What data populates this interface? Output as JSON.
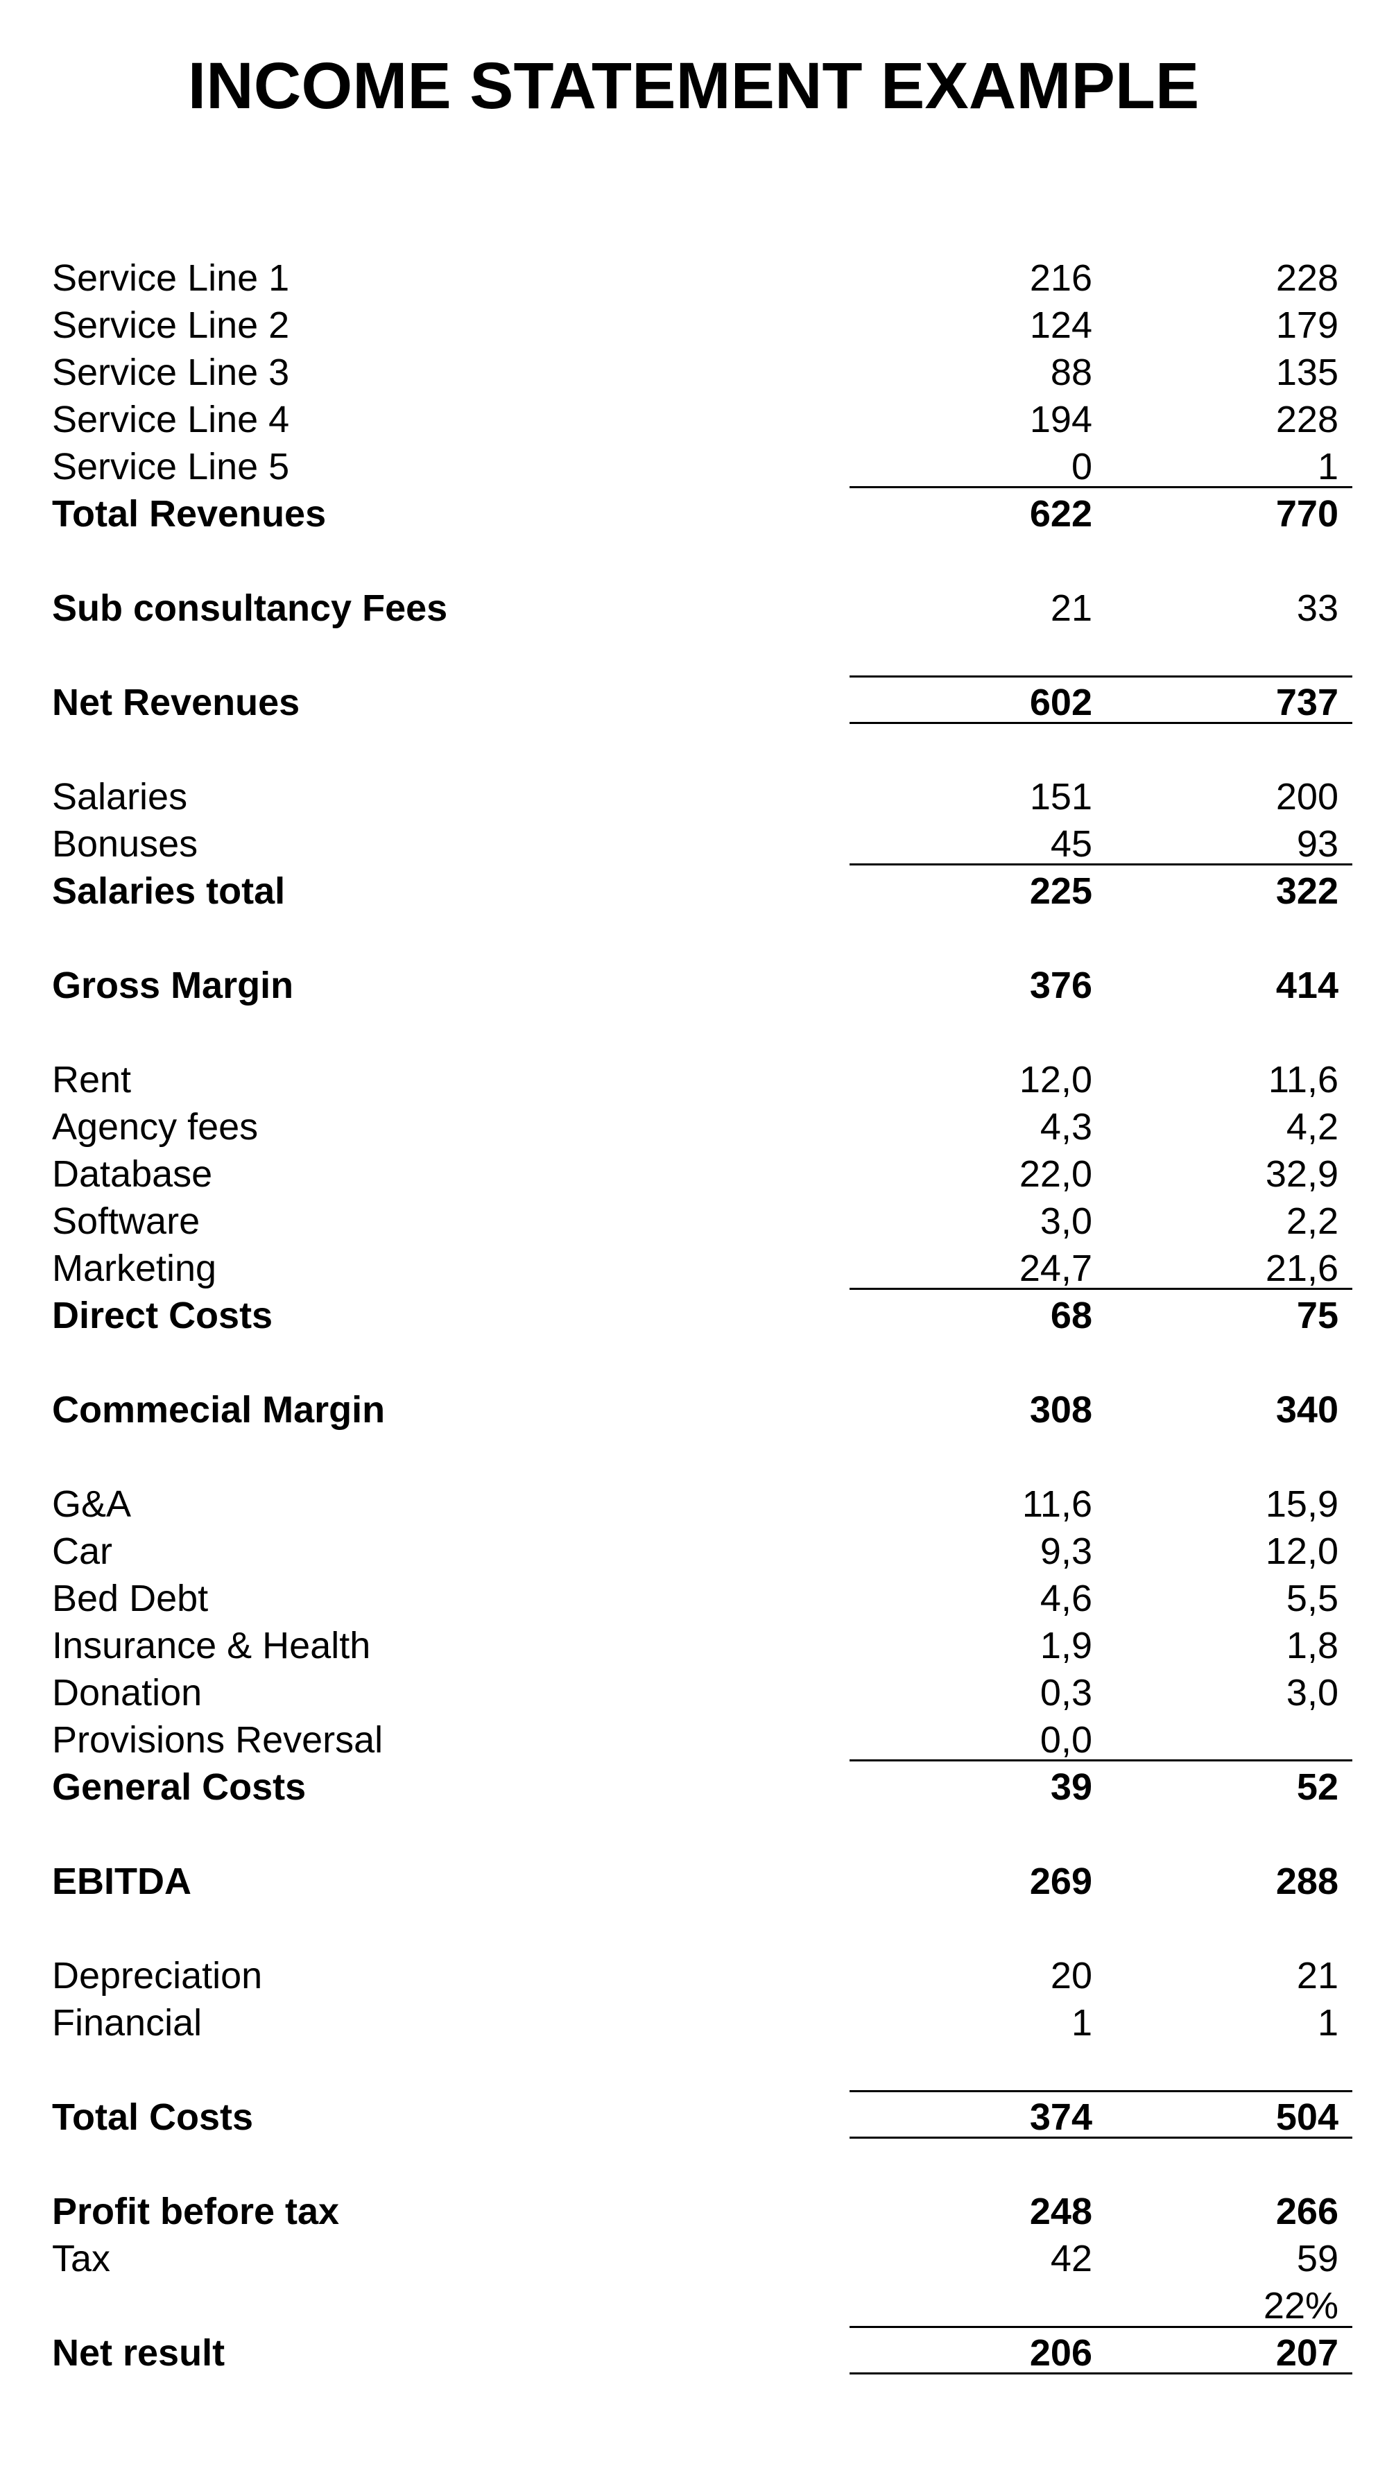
{
  "title": "INCOME STATEMENT EXAMPLE",
  "colors": {
    "text": "#000000",
    "background": "#ffffff"
  },
  "rows": [
    {
      "label": "Service Line 1",
      "v1": "216",
      "v2": "228"
    },
    {
      "label": "Service Line 2",
      "v1": "124",
      "v2": "179"
    },
    {
      "label": "Service Line 3",
      "v1": "88",
      "v2": "135"
    },
    {
      "label": "Service Line 4",
      "v1": "194",
      "v2": "228"
    },
    {
      "label": "Service Line 5",
      "v1": "0",
      "v2": "1",
      "rule_below": true
    },
    {
      "label": "Total Revenues",
      "v1": "622",
      "v2": "770",
      "bold": true
    },
    {
      "label": "",
      "v1": "",
      "v2": ""
    },
    {
      "label": "Sub consultancy Fees",
      "v1": "21",
      "v2": "33",
      "label_bold": true
    },
    {
      "label": "",
      "v1": "",
      "v2": ""
    },
    {
      "label": "Net Revenues",
      "v1": "602",
      "v2": "737",
      "bold": true,
      "rule_above": true,
      "rule_below": true
    },
    {
      "label": "",
      "v1": "",
      "v2": ""
    },
    {
      "label": "Salaries",
      "v1": "151",
      "v2": "200"
    },
    {
      "label": "Bonuses",
      "v1": "45",
      "v2": "93",
      "rule_below": true
    },
    {
      "label": "Salaries total",
      "v1": "225",
      "v2": "322",
      "bold": true
    },
    {
      "label": "",
      "v1": "",
      "v2": ""
    },
    {
      "label": "Gross Margin",
      "v1": "376",
      "v2": "414",
      "bold": true
    },
    {
      "label": "",
      "v1": "",
      "v2": ""
    },
    {
      "label": "Rent",
      "v1": "12,0",
      "v2": "11,6"
    },
    {
      "label": "Agency fees",
      "v1": "4,3",
      "v2": "4,2"
    },
    {
      "label": "Database",
      "v1": "22,0",
      "v2": "32,9"
    },
    {
      "label": "Software",
      "v1": "3,0",
      "v2": "2,2"
    },
    {
      "label": "Marketing",
      "v1": "24,7",
      "v2": "21,6",
      "rule_below": true
    },
    {
      "label": "Direct Costs",
      "v1": "68",
      "v2": "75",
      "bold": true
    },
    {
      "label": "",
      "v1": "",
      "v2": ""
    },
    {
      "label": "Commecial Margin",
      "v1": "308",
      "v2": "340",
      "bold": true
    },
    {
      "label": "",
      "v1": "",
      "v2": ""
    },
    {
      "label": "G&A",
      "v1": "11,6",
      "v2": "15,9"
    },
    {
      "label": "Car",
      "v1": "9,3",
      "v2": "12,0"
    },
    {
      "label": "Bed Debt",
      "v1": "4,6",
      "v2": "5,5"
    },
    {
      "label": "Insurance & Health",
      "v1": "1,9",
      "v2": "1,8"
    },
    {
      "label": "Donation",
      "v1": "0,3",
      "v2": "3,0"
    },
    {
      "label": "Provisions Reversal",
      "v1": "0,0",
      "v2": "",
      "rule_below": true
    },
    {
      "label": "General Costs",
      "v1": "39",
      "v2": "52",
      "bold": true
    },
    {
      "label": "",
      "v1": "",
      "v2": ""
    },
    {
      "label": "EBITDA",
      "v1": "269",
      "v2": "288",
      "bold": true
    },
    {
      "label": "",
      "v1": "",
      "v2": ""
    },
    {
      "label": "Depreciation",
      "v1": "20",
      "v2": "21"
    },
    {
      "label": "Financial",
      "v1": "1",
      "v2": "1"
    },
    {
      "label": "",
      "v1": "",
      "v2": ""
    },
    {
      "label": "Total Costs",
      "v1": "374",
      "v2": "504",
      "bold": true,
      "rule_above": true,
      "rule_below": true
    },
    {
      "label": "",
      "v1": "",
      "v2": ""
    },
    {
      "label": "Profit before tax",
      "v1": "248",
      "v2": "266",
      "bold": true
    },
    {
      "label": "Tax",
      "v1": "42",
      "v2": "59"
    },
    {
      "label": "",
      "v1": "",
      "v2": "22%"
    },
    {
      "label": "Net result",
      "v1": "206",
      "v2": "207",
      "bold": true,
      "rule_above": true,
      "rule_below": true
    }
  ]
}
